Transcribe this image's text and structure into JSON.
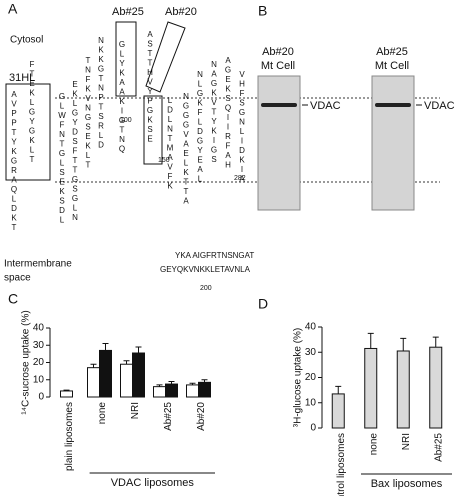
{
  "panels": {
    "a": "A",
    "b": "B",
    "c": "C",
    "d": "D"
  },
  "topology": {
    "cytosol": "Cytosol",
    "intermembrane": [
      "Intermembrane",
      "space"
    ],
    "hl": "31HL",
    "ab25": "Ab#25",
    "ab20": "Ab#20",
    "residues": [
      "100",
      "150",
      "200",
      "282"
    ],
    "strands": [
      "AVPPTYKGRAQLDKT",
      "FTEKLGYGKLT",
      "GLWFNTGLSEKSDL",
      "EKLGYDSFTTGSGLN",
      "TNFKVNGSEKLT",
      "NKKGTNPTSRLD",
      "GLYKAAKIGTNQ",
      "ASTTHVYPGKSE",
      "LDLNTMAVFK",
      "NGGGVAELKTTA",
      "NLGKFLDGYEAL",
      "NAGKVTYKIGS",
      "AGEKSQIIRFAH",
      "VHFSGNLIDKIA"
    ],
    "sequence": [
      "YKA AIGFRTNSNGAT",
      "GEYQKVNKKLETAVNLA"
    ]
  },
  "blots": [
    {
      "antibody": "Ab#20",
      "sample": "Mt Cell",
      "band": "VDAC"
    },
    {
      "antibody": "Ab#25",
      "sample": "Mt Cell",
      "band": "VDAC"
    }
  ],
  "chart_data": [
    {
      "type": "bar",
      "ylabel": "¹⁴C-sucrose uptake (%)",
      "categories": [
        "plain liposomes",
        "none",
        "NRI",
        "Ab#25",
        "Ab#20"
      ],
      "group": "VDAC liposomes",
      "series": [
        {
          "color": "#ffffff",
          "values": [
            3.5,
            17,
            19,
            6,
            7
          ],
          "errors": [
            0.5,
            2,
            2,
            1,
            1
          ]
        },
        {
          "color": "#111111",
          "values": [
            null,
            27,
            25.5,
            7.5,
            8.5
          ],
          "errors": [
            null,
            4,
            3.5,
            1.5,
            1.5
          ]
        }
      ],
      "ylim": [
        0,
        40
      ],
      "yticks": [
        0,
        10,
        20,
        30,
        40
      ]
    },
    {
      "type": "bar",
      "ylabel": "³H-glucose uptake (%)",
      "categories": [
        "control liposomes",
        "none",
        "NRI",
        "Ab#25"
      ],
      "group": "Bax liposomes",
      "series": [
        {
          "color": "#d9d9d9",
          "values": [
            13.5,
            31.5,
            30.5,
            32
          ],
          "errors": [
            3,
            6,
            5,
            4
          ]
        }
      ],
      "ylim": [
        0,
        40
      ],
      "yticks": [
        0,
        10,
        20,
        30,
        40
      ]
    }
  ]
}
